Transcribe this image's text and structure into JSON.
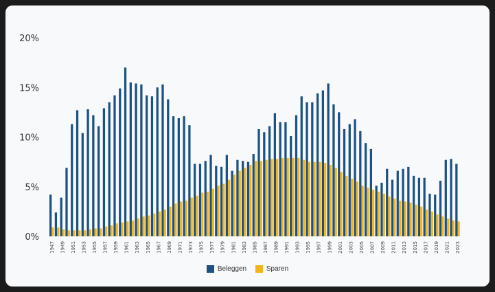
{
  "colors": {
    "beleggen": "#1c5183",
    "sparen": "#f2b51e"
  },
  "chart_data": {
    "type": "bar",
    "ylim": [
      0,
      20
    ],
    "yticks": [
      {
        "v": 0,
        "label": "0%"
      },
      {
        "v": 5,
        "label": "5%"
      },
      {
        "v": 10,
        "label": "10%"
      },
      {
        "v": 15,
        "label": "15%"
      },
      {
        "v": 20,
        "label": "20%"
      }
    ],
    "x": [
      1947,
      1948,
      1949,
      1950,
      1951,
      1952,
      1953,
      1954,
      1955,
      1956,
      1957,
      1958,
      1959,
      1960,
      1961,
      1962,
      1963,
      1964,
      1965,
      1966,
      1967,
      1968,
      1969,
      1970,
      1971,
      1972,
      1973,
      1974,
      1975,
      1976,
      1977,
      1978,
      1979,
      1980,
      1981,
      1982,
      1983,
      1984,
      1985,
      1986,
      1987,
      1988,
      1989,
      1990,
      1991,
      1992,
      1993,
      1994,
      1995,
      1996,
      1997,
      1998,
      1999,
      2000,
      2001,
      2002,
      2003,
      2004,
      2005,
      2006,
      2007,
      2008,
      2009,
      2010,
      2011,
      2012,
      2013,
      2014,
      2015,
      2016,
      2017,
      2018,
      2019,
      2020,
      2021,
      2022,
      2023
    ],
    "xtick_labels": [
      "1947",
      "1949",
      "1951",
      "1953",
      "1955",
      "1957",
      "1959",
      "1961",
      "1963",
      "1965",
      "1967",
      "1969",
      "1971",
      "1973",
      "1975",
      "1977",
      "1979",
      "1981",
      "1983",
      "1985",
      "1987",
      "1989",
      "1991",
      "1993",
      "1995",
      "1997",
      "1999",
      "2001",
      "2003",
      "2005",
      "2007",
      "2009",
      "2011",
      "2013",
      "2015",
      "2017",
      "2019",
      "2021",
      "2023"
    ],
    "series": [
      {
        "name": "Beleggen",
        "values": [
          4.2,
          2.4,
          3.9,
          6.9,
          11.3,
          12.7,
          10.4,
          12.8,
          12.2,
          11.1,
          12.9,
          13.5,
          14.2,
          14.9,
          17.0,
          15.5,
          15.4,
          15.3,
          14.2,
          14.1,
          15.0,
          15.3,
          13.8,
          12.1,
          11.9,
          12.1,
          11.2,
          7.3,
          7.3,
          7.6,
          8.2,
          7.1,
          7.0,
          8.2,
          6.6,
          7.7,
          7.6,
          7.5,
          8.3,
          10.8,
          10.5,
          11.1,
          12.4,
          11.5,
          11.5,
          10.1,
          12.2,
          14.1,
          13.5,
          13.5,
          14.4,
          14.7,
          15.4,
          13.3,
          12.5,
          10.8,
          11.3,
          11.8,
          10.6,
          9.4,
          8.8,
          5.1,
          5.4,
          6.8,
          5.7,
          6.6,
          6.8,
          7.0,
          6.1,
          5.9,
          5.9,
          4.3,
          4.2,
          5.6,
          7.7,
          7.8,
          7.3
        ]
      },
      {
        "name": "Sparen",
        "values": [
          0.9,
          0.9,
          0.7,
          0.6,
          0.6,
          0.6,
          0.6,
          0.7,
          0.8,
          0.8,
          1.0,
          1.1,
          1.3,
          1.4,
          1.5,
          1.6,
          1.8,
          2.0,
          2.1,
          2.3,
          2.5,
          2.7,
          3.0,
          3.3,
          3.5,
          3.6,
          3.9,
          4.1,
          4.4,
          4.5,
          4.8,
          5.1,
          5.3,
          5.7,
          6.2,
          6.6,
          6.9,
          7.2,
          7.6,
          7.6,
          7.7,
          7.8,
          7.8,
          7.9,
          7.9,
          7.9,
          7.9,
          7.7,
          7.5,
          7.5,
          7.5,
          7.4,
          7.2,
          6.9,
          6.5,
          6.1,
          5.8,
          5.5,
          5.1,
          4.9,
          4.7,
          4.5,
          4.3,
          4.0,
          3.8,
          3.6,
          3.5,
          3.4,
          3.2,
          3.0,
          2.7,
          2.5,
          2.2,
          2.0,
          1.8,
          1.6,
          1.5
        ]
      }
    ]
  }
}
